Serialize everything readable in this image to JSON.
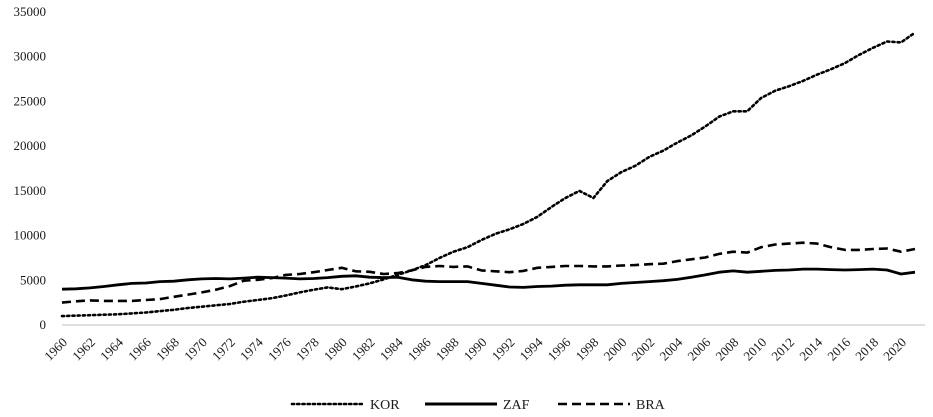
{
  "chart_data": {
    "type": "line",
    "title": "",
    "xlabel": "",
    "ylabel": "",
    "x": [
      1960,
      1961,
      1962,
      1963,
      1964,
      1965,
      1966,
      1967,
      1968,
      1969,
      1970,
      1971,
      1972,
      1973,
      1974,
      1975,
      1976,
      1977,
      1978,
      1979,
      1980,
      1981,
      1982,
      1983,
      1984,
      1985,
      1986,
      1987,
      1988,
      1989,
      1990,
      1991,
      1992,
      1993,
      1994,
      1995,
      1996,
      1997,
      1998,
      1999,
      2000,
      2001,
      2002,
      2003,
      2004,
      2005,
      2006,
      2007,
      2008,
      2009,
      2010,
      2011,
      2012,
      2013,
      2014,
      2015,
      2016,
      2017,
      2018,
      2019,
      2020,
      2021
    ],
    "x_tick_labels": [
      "1960",
      "1962",
      "1964",
      "1966",
      "1968",
      "1970",
      "1972",
      "1974",
      "1976",
      "1978",
      "1980",
      "1982",
      "1984",
      "1986",
      "1988",
      "1990",
      "1992",
      "1994",
      "1996",
      "1998",
      "2000",
      "2002",
      "2004",
      "2006",
      "2008",
      "2010",
      "2012",
      "2014",
      "2016",
      "2018",
      "2020"
    ],
    "y_ticks": [
      0,
      5000,
      10000,
      15000,
      20000,
      25000,
      30000,
      35000
    ],
    "y_tick_labels": [
      "0",
      "5000",
      "10000",
      "15000",
      "20000",
      "25000",
      "30000",
      "35000"
    ],
    "ylim": [
      0,
      35000
    ],
    "grid": false,
    "legend_position": "bottom",
    "series": [
      {
        "name": "KOR",
        "style": "dotted",
        "color": "#000000",
        "values": [
          1000,
          1050,
          1100,
          1150,
          1200,
          1300,
          1400,
          1550,
          1700,
          1900,
          2050,
          2200,
          2350,
          2600,
          2800,
          3000,
          3300,
          3650,
          3950,
          4200,
          4000,
          4300,
          4650,
          5100,
          5600,
          6100,
          6700,
          7500,
          8200,
          8700,
          9500,
          10200,
          10700,
          11300,
          12100,
          13200,
          14200,
          15000,
          14200,
          16100,
          17100,
          17800,
          18800,
          19500,
          20400,
          21200,
          22200,
          23300,
          23900,
          23900,
          25400,
          26200,
          26700,
          27300,
          28000,
          28600,
          29300,
          30200,
          31000,
          31700,
          31600,
          32700
        ]
      },
      {
        "name": "ZAF",
        "style": "solid",
        "color": "#000000",
        "values": [
          4000,
          4050,
          4150,
          4300,
          4500,
          4650,
          4700,
          4850,
          4900,
          5050,
          5150,
          5200,
          5150,
          5250,
          5350,
          5300,
          5250,
          5150,
          5200,
          5300,
          5450,
          5500,
          5350,
          5300,
          5350,
          5050,
          4900,
          4850,
          4850,
          4850,
          4650,
          4450,
          4250,
          4200,
          4300,
          4350,
          4450,
          4500,
          4500,
          4500,
          4650,
          4750,
          4850,
          4950,
          5100,
          5350,
          5600,
          5900,
          6050,
          5900,
          6000,
          6100,
          6150,
          6250,
          6250,
          6200,
          6150,
          6200,
          6250,
          6150,
          5700,
          5900
        ]
      },
      {
        "name": "BRA",
        "style": "dashed",
        "color": "#000000",
        "values": [
          2500,
          2650,
          2750,
          2700,
          2700,
          2700,
          2800,
          2900,
          3150,
          3400,
          3650,
          3950,
          4350,
          4950,
          5050,
          5250,
          5600,
          5700,
          5900,
          6150,
          6400,
          6000,
          5950,
          5700,
          5800,
          6100,
          6500,
          6600,
          6500,
          6550,
          6100,
          6000,
          5900,
          6050,
          6400,
          6500,
          6600,
          6600,
          6550,
          6550,
          6650,
          6700,
          6800,
          6850,
          7150,
          7350,
          7550,
          7950,
          8200,
          8100,
          8700,
          9000,
          9100,
          9200,
          9100,
          8700,
          8400,
          8400,
          8500,
          8550,
          8200,
          8500
        ]
      }
    ]
  }
}
